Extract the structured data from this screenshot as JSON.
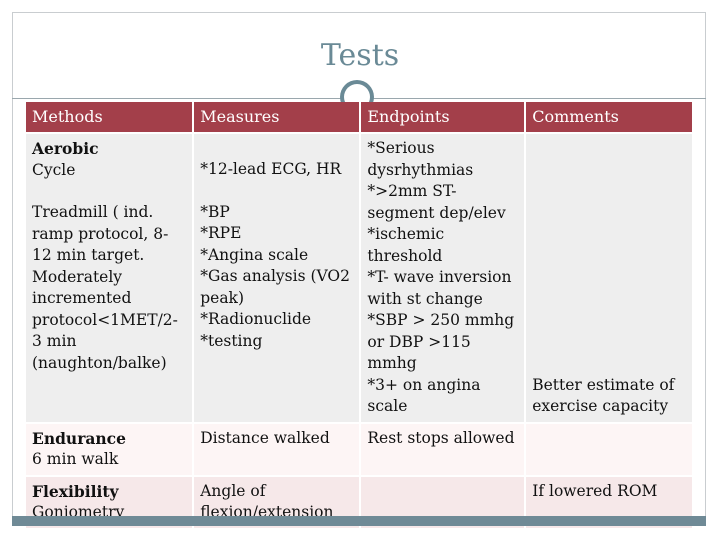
{
  "slide": {
    "title": "Tests"
  },
  "table": {
    "headers": [
      "Methods",
      "Measures",
      "Endpoints",
      "Comments"
    ],
    "rows": [
      {
        "method_title": "Aerobic",
        "method_sub": "Cycle",
        "method_extra": "Treadmill ( ind.\nramp protocol, 8-\n12 min target.\nModerately\nincremented\nprotocol<1MET/2-\n3 min\n(naughton/balke)",
        "measures_top": "*12-lead ECG, HR",
        "measures": "*BP\n*RPE\n*Angina scale\n*Gas analysis (VO2\npeak)\n*Radionuclide\n*testing",
        "endpoints": "*Serious\ndysrhythmias\n*>2mm ST-\nsegment dep/elev\n*ischemic\nthreshold\n*T- wave inversion\nwith st change\n*SBP > 250 mmhg\nor DBP >115 mmhg\n*3+ on angina\nscale",
        "comments": "Better estimate of\nexercise capacity"
      },
      {
        "method_title": "Endurance",
        "method_sub": "6 min walk",
        "measures": "Distance walked",
        "endpoints": "Rest stops allowed",
        "comments": ""
      },
      {
        "method_title": "Flexibility",
        "method_sub": "Goniometry",
        "measures": "Angle of\nflexion/extension",
        "endpoints": "",
        "comments": "If lowered ROM"
      }
    ]
  },
  "colors": {
    "header_bg": "#a33f4a",
    "accent": "#6a8a96"
  }
}
